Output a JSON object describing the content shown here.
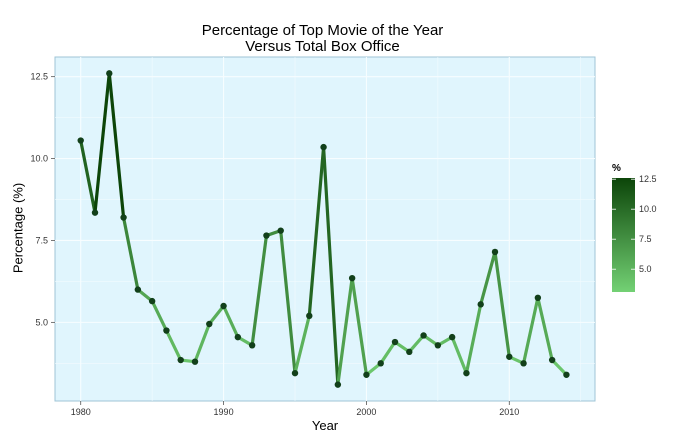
{
  "chart_data": {
    "type": "line",
    "title": "Percentage of Top Movie of the Year",
    "subtitle": "Versus Total Box Office",
    "xlabel": "Year",
    "ylabel": "Percentage (%)",
    "xlim": [
      1978.2,
      2016
    ],
    "ylim": [
      2.6,
      13.1
    ],
    "x_ticks": [
      1980,
      1990,
      2000,
      2010
    ],
    "y_ticks": [
      5.0,
      7.5,
      10.0,
      12.5
    ],
    "x_tick_labels": [
      "1980",
      "1990",
      "2000",
      "2010"
    ],
    "y_tick_labels": [
      "5.0",
      "7.5",
      "10.0",
      "12.5"
    ],
    "legend": {
      "title": "%",
      "position": "right",
      "breaks": [
        "5.0",
        "7.5",
        "10.0",
        "12.5"
      ],
      "break_values": [
        5.0,
        7.5,
        10.0,
        12.5
      ],
      "range": [
        3.1,
        12.6
      ]
    },
    "colors": {
      "panel": "#e0f5fd",
      "grid": "#f2fbfe",
      "low": "#73d174",
      "high": "#0c4509",
      "point": "#12401a"
    },
    "grid": true,
    "series": [
      {
        "x": [
          1980,
          1981,
          1982,
          1983,
          1984,
          1985,
          1986,
          1987,
          1988,
          1989,
          1990,
          1991,
          1992,
          1993,
          1994,
          1995,
          1996,
          1997,
          1998,
          1999,
          2000,
          2001,
          2002,
          2003,
          2004,
          2005,
          2006,
          2007,
          2008,
          2009,
          2010,
          2011,
          2012,
          2013,
          2014
        ],
        "y": [
          10.55,
          8.35,
          12.6,
          8.2,
          6.0,
          5.65,
          4.75,
          3.85,
          3.8,
          4.95,
          5.5,
          4.55,
          4.3,
          7.65,
          7.8,
          3.45,
          5.2,
          10.35,
          3.1,
          6.35,
          3.4,
          3.75,
          4.4,
          4.1,
          4.6,
          4.3,
          4.55,
          3.45,
          5.55,
          7.15,
          3.95,
          3.75,
          5.75,
          3.85,
          3.4
        ]
      }
    ]
  }
}
